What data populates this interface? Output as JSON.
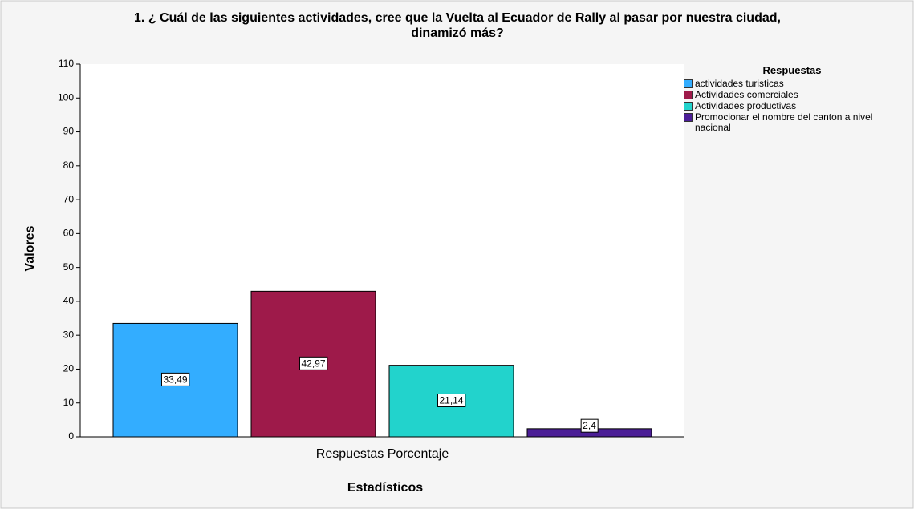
{
  "chart_data": {
    "type": "bar",
    "title": [
      "1. ¿ Cuál de las siguientes actividades, cree que la Vuelta al Ecuador de Rally al pasar por nuestra ciudad,",
      "dinamizó más?"
    ],
    "categories": [
      "Respuestas Porcentaje"
    ],
    "x_label": "Estadísticos",
    "y_label": "Valores",
    "legend_title": "Respuestas",
    "legend_position": "upper right",
    "series": [
      {
        "name": "actividades turisticas",
        "color": "#33adff",
        "values": [
          33.49
        ],
        "value_labels": [
          "33,49"
        ]
      },
      {
        "name": "Actividades comerciales",
        "color": "#9e1a4a",
        "values": [
          42.97
        ],
        "value_labels": [
          "42,97"
        ]
      },
      {
        "name": "Actividades productivas",
        "color": "#22d3cc",
        "values": [
          21.14
        ],
        "value_labels": [
          "21,14"
        ]
      },
      {
        "name": "Promocionar el nombre del canton a nivel nacional",
        "color": "#4b1e96",
        "values": [
          2.4
        ],
        "value_labels": [
          "2,4"
        ]
      }
    ],
    "ylim": [
      0,
      110
    ],
    "yticks": [
      0,
      10,
      20,
      30,
      40,
      50,
      60,
      70,
      80,
      90,
      100,
      110
    ],
    "grid": false
  }
}
